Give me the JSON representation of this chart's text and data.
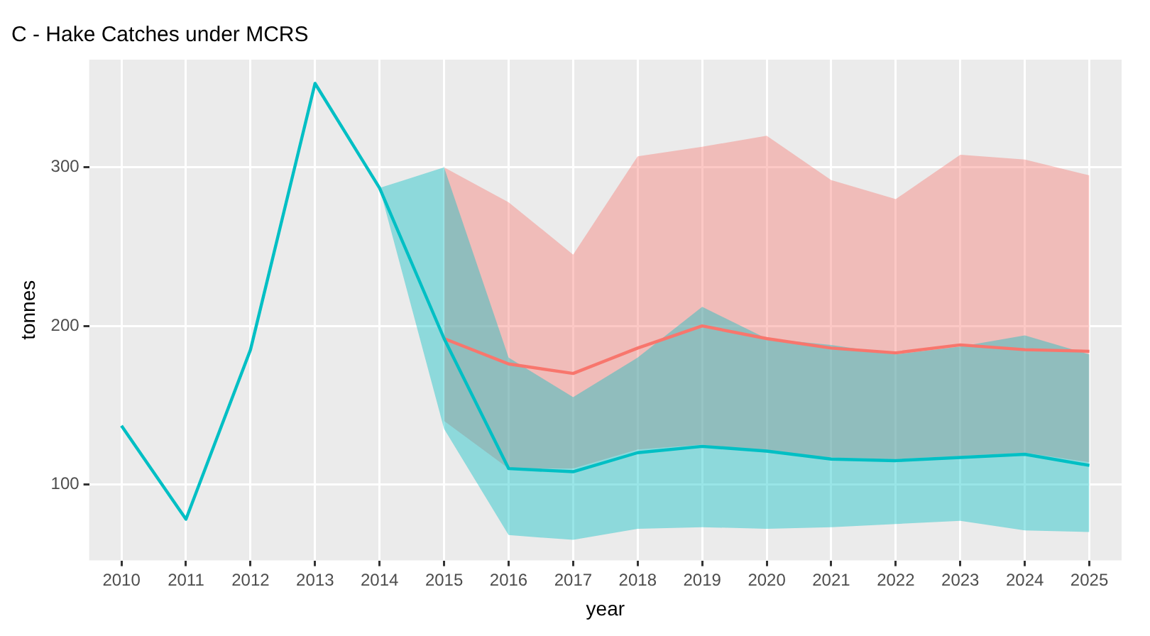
{
  "chart_data": {
    "type": "line",
    "title": "C - Hake Catches under MCRS",
    "xlabel": "year",
    "ylabel": "tonnes",
    "categories": [
      "2010",
      "2011",
      "2012",
      "2013",
      "2014",
      "2015",
      "2016",
      "2017",
      "2018",
      "2019",
      "2020",
      "2021",
      "2022",
      "2023",
      "2024",
      "2025"
    ],
    "series": [
      {
        "color": "#00bfc4",
        "values": [
          137,
          78,
          185,
          353,
          287,
          192,
          110,
          108,
          120,
          124,
          121,
          116,
          115,
          117,
          119,
          112
        ],
        "lower": [
          null,
          null,
          null,
          null,
          287,
          135,
          68,
          65,
          72,
          73,
          72,
          73,
          75,
          77,
          71,
          70
        ],
        "upper": [
          null,
          null,
          null,
          null,
          287,
          300,
          180,
          155,
          180,
          212,
          192,
          188,
          182,
          187,
          194,
          182
        ]
      },
      {
        "color": "#f8766d",
        "values": [
          null,
          null,
          null,
          null,
          null,
          192,
          176,
          170,
          186,
          200,
          192,
          186,
          183,
          188,
          185,
          184
        ],
        "lower": [
          null,
          null,
          null,
          null,
          null,
          140,
          110,
          110,
          122,
          125,
          120,
          117,
          116,
          118,
          120,
          114
        ],
        "upper": [
          null,
          null,
          null,
          null,
          null,
          300,
          278,
          245,
          307,
          313,
          320,
          292,
          280,
          308,
          305,
          295
        ]
      }
    ],
    "ylim": [
      52,
      368
    ],
    "yticks": [
      100,
      200,
      300
    ],
    "grid": true,
    "legend": false,
    "marker": "none",
    "line_style": "solid"
  }
}
